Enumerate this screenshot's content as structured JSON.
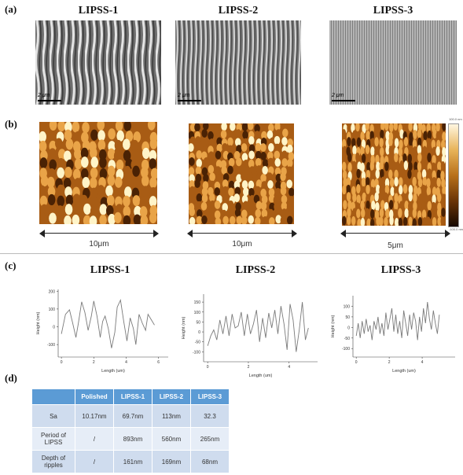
{
  "panels": {
    "a": {
      "tag": "(a)",
      "titles": [
        "LIPSS-1",
        "LIPSS-2",
        "LIPSS-3"
      ],
      "scale_label": "2 μm"
    },
    "b": {
      "tag": "(b)",
      "scan_sizes": [
        "10μm",
        "10μm",
        "5μm"
      ],
      "colorbar": {
        "top_label": "100.0 nm",
        "bottom_label": "-100.0 nm",
        "colors": [
          "#fff6e0",
          "#e8b45a",
          "#b8701a",
          "#6a3408",
          "#150800"
        ]
      }
    },
    "c": {
      "tag": "(c)",
      "titles": [
        "LIPSS-1",
        "LIPSS-2",
        "LIPSS-3"
      ]
    },
    "d": {
      "tag": "(d)"
    }
  },
  "afm_colors": [
    "#fff4c8",
    "#e9a448",
    "#a85c14",
    "#4a2204"
  ],
  "chart_data": [
    {
      "type": "line",
      "title": "LIPSS-1",
      "xlabel": "Length (um)",
      "ylabel": "Height (nm)",
      "xlim": [
        -0.2,
        6.6
      ],
      "ylim": [
        -170,
        210
      ],
      "xticks": [
        0,
        2,
        4,
        6
      ],
      "yticks": [
        -100,
        0,
        100,
        200
      ],
      "series": [
        {
          "x": [
            0,
            0.25,
            0.5,
            0.7,
            0.9,
            1.05,
            1.25,
            1.45,
            1.65,
            1.85,
            2.0,
            2.2,
            2.4,
            2.55,
            2.7,
            2.9,
            3.1,
            3.3,
            3.45,
            3.65,
            3.85,
            4.05,
            4.25,
            4.45,
            4.6,
            4.8,
            5.0,
            5.2,
            5.35,
            5.55,
            5.75
          ],
          "y": [
            -40,
            70,
            95,
            20,
            -60,
            20,
            140,
            80,
            -20,
            60,
            145,
            60,
            -60,
            30,
            60,
            -10,
            -120,
            -30,
            110,
            150,
            30,
            -80,
            50,
            -10,
            -100,
            70,
            20,
            -20,
            70,
            40,
            10
          ]
        }
      ]
    },
    {
      "type": "line",
      "title": "LIPSS-2",
      "xlabel": "Length (um)",
      "ylabel": "Height (nm)",
      "xlim": [
        -0.2,
        5.4
      ],
      "ylim": [
        -150,
        190
      ],
      "xticks": [
        0,
        2,
        4
      ],
      "yticks": [
        -100,
        -50,
        0,
        50,
        100,
        150
      ],
      "series": [
        {
          "x": [
            0,
            0.15,
            0.3,
            0.45,
            0.6,
            0.75,
            0.9,
            1.05,
            1.2,
            1.35,
            1.5,
            1.65,
            1.8,
            1.95,
            2.1,
            2.25,
            2.4,
            2.55,
            2.7,
            2.85,
            3.0,
            3.15,
            3.3,
            3.45,
            3.6,
            3.75,
            3.9,
            4.05,
            4.2,
            4.35,
            4.5,
            4.65,
            4.8,
            4.95
          ],
          "y": [
            -70,
            -20,
            10,
            -40,
            60,
            -10,
            80,
            -20,
            90,
            20,
            30,
            100,
            -20,
            90,
            -10,
            40,
            110,
            -50,
            70,
            -30,
            95,
            20,
            110,
            -10,
            130,
            40,
            -90,
            140,
            60,
            -100,
            10,
            150,
            -40,
            20
          ]
        }
      ]
    },
    {
      "type": "line",
      "title": "LIPSS-3",
      "xlabel": "Length (um)",
      "ylabel": "Height (nm)",
      "xlim": [
        -0.2,
        6.0
      ],
      "ylim": [
        -140,
        150
      ],
      "xticks": [
        0,
        2,
        4
      ],
      "yticks": [
        -100,
        -50,
        0,
        50,
        100
      ],
      "series": [
        {
          "x": [
            0,
            0.12,
            0.24,
            0.36,
            0.48,
            0.6,
            0.72,
            0.84,
            0.96,
            1.08,
            1.2,
            1.32,
            1.44,
            1.56,
            1.68,
            1.8,
            1.92,
            2.04,
            2.16,
            2.28,
            2.4,
            2.52,
            2.64,
            2.76,
            2.88,
            3.0,
            3.12,
            3.24,
            3.36,
            3.48,
            3.6,
            3.72,
            3.84,
            3.96,
            4.08,
            4.2,
            4.32,
            4.44,
            4.56,
            4.68,
            4.8,
            4.92,
            5.04
          ],
          "y": [
            -40,
            20,
            -50,
            30,
            -30,
            40,
            -20,
            10,
            -60,
            30,
            -10,
            50,
            -30,
            20,
            -40,
            70,
            -10,
            40,
            90,
            -20,
            60,
            -30,
            30,
            -50,
            80,
            20,
            -40,
            60,
            -10,
            70,
            30,
            -60,
            50,
            -20,
            90,
            20,
            120,
            40,
            -10,
            80,
            20,
            -30,
            60
          ]
        }
      ]
    },
    {
      "type": "table",
      "columns": [
        "",
        "Polished",
        "LIPSS-1",
        "LIPSS-2",
        "LIPSS-3"
      ],
      "rows": [
        [
          "Sa",
          "10.17nm",
          "69.7nm",
          "113nm",
          "32.3"
        ],
        [
          "Period of LIPSS",
          "/",
          "893nm",
          "560nm",
          "265nm"
        ],
        [
          "Depth of ripples",
          "/",
          "161nm",
          "169nm",
          "68nm"
        ]
      ]
    }
  ]
}
